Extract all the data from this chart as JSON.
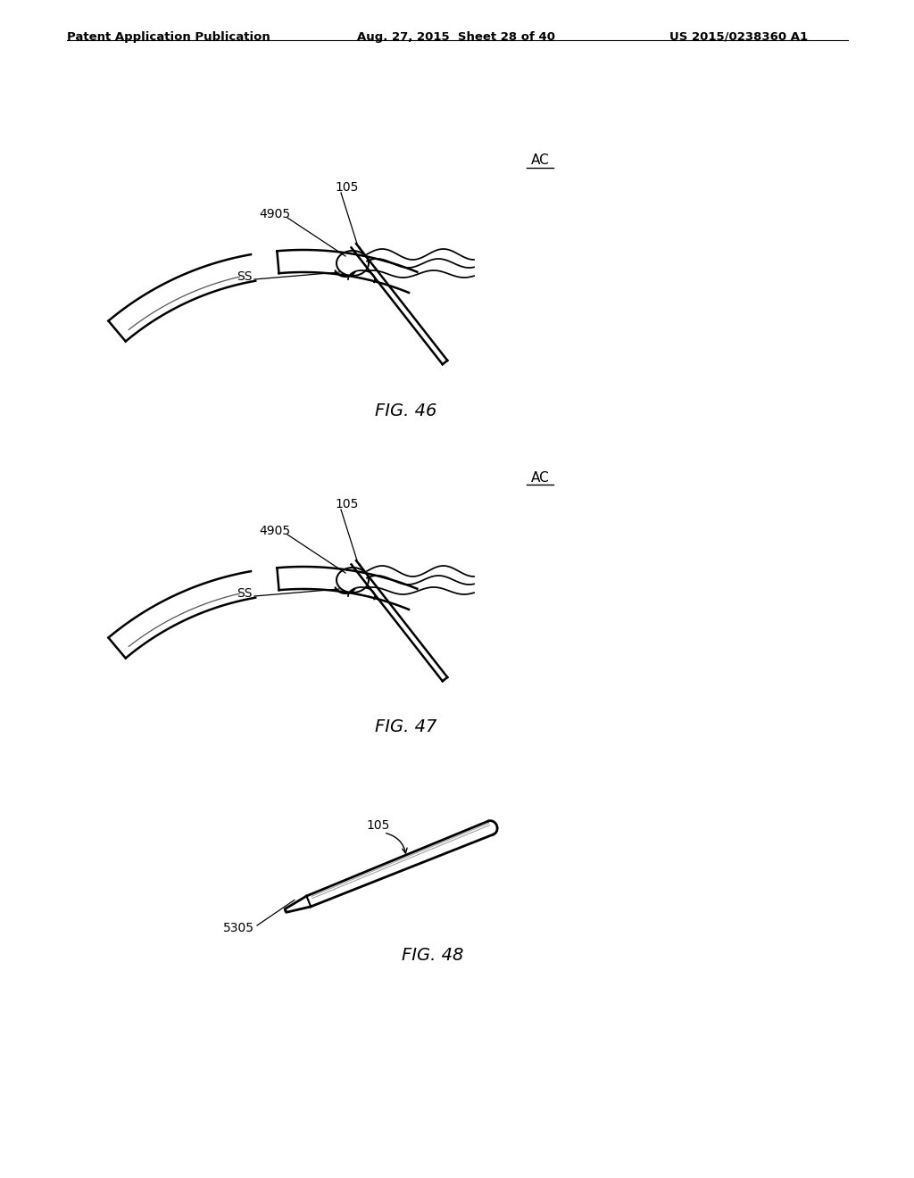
{
  "bg_color": "#ffffff",
  "header_left": "Patent Application Publication",
  "header_mid": "Aug. 27, 2015  Sheet 28 of 40",
  "header_right": "US 2015/0238360 A1",
  "fig46_label": "FIG. 46",
  "fig47_label": "FIG. 47",
  "fig48_label": "FIG. 48",
  "label_105_46": "105",
  "label_4905_46": "4905",
  "label_SS_46": "SS",
  "label_AC_46": "AC",
  "label_105_47": "105",
  "label_4905_47": "4905",
  "label_SS_47": "SS",
  "label_AC_47": "AC",
  "label_105_48": "105",
  "label_5305_48": "5305",
  "line_color": "#000000",
  "text_color": "#000000",
  "header_fontsize": 9.5,
  "label_fontsize": 10,
  "fig_label_fontsize": 14
}
